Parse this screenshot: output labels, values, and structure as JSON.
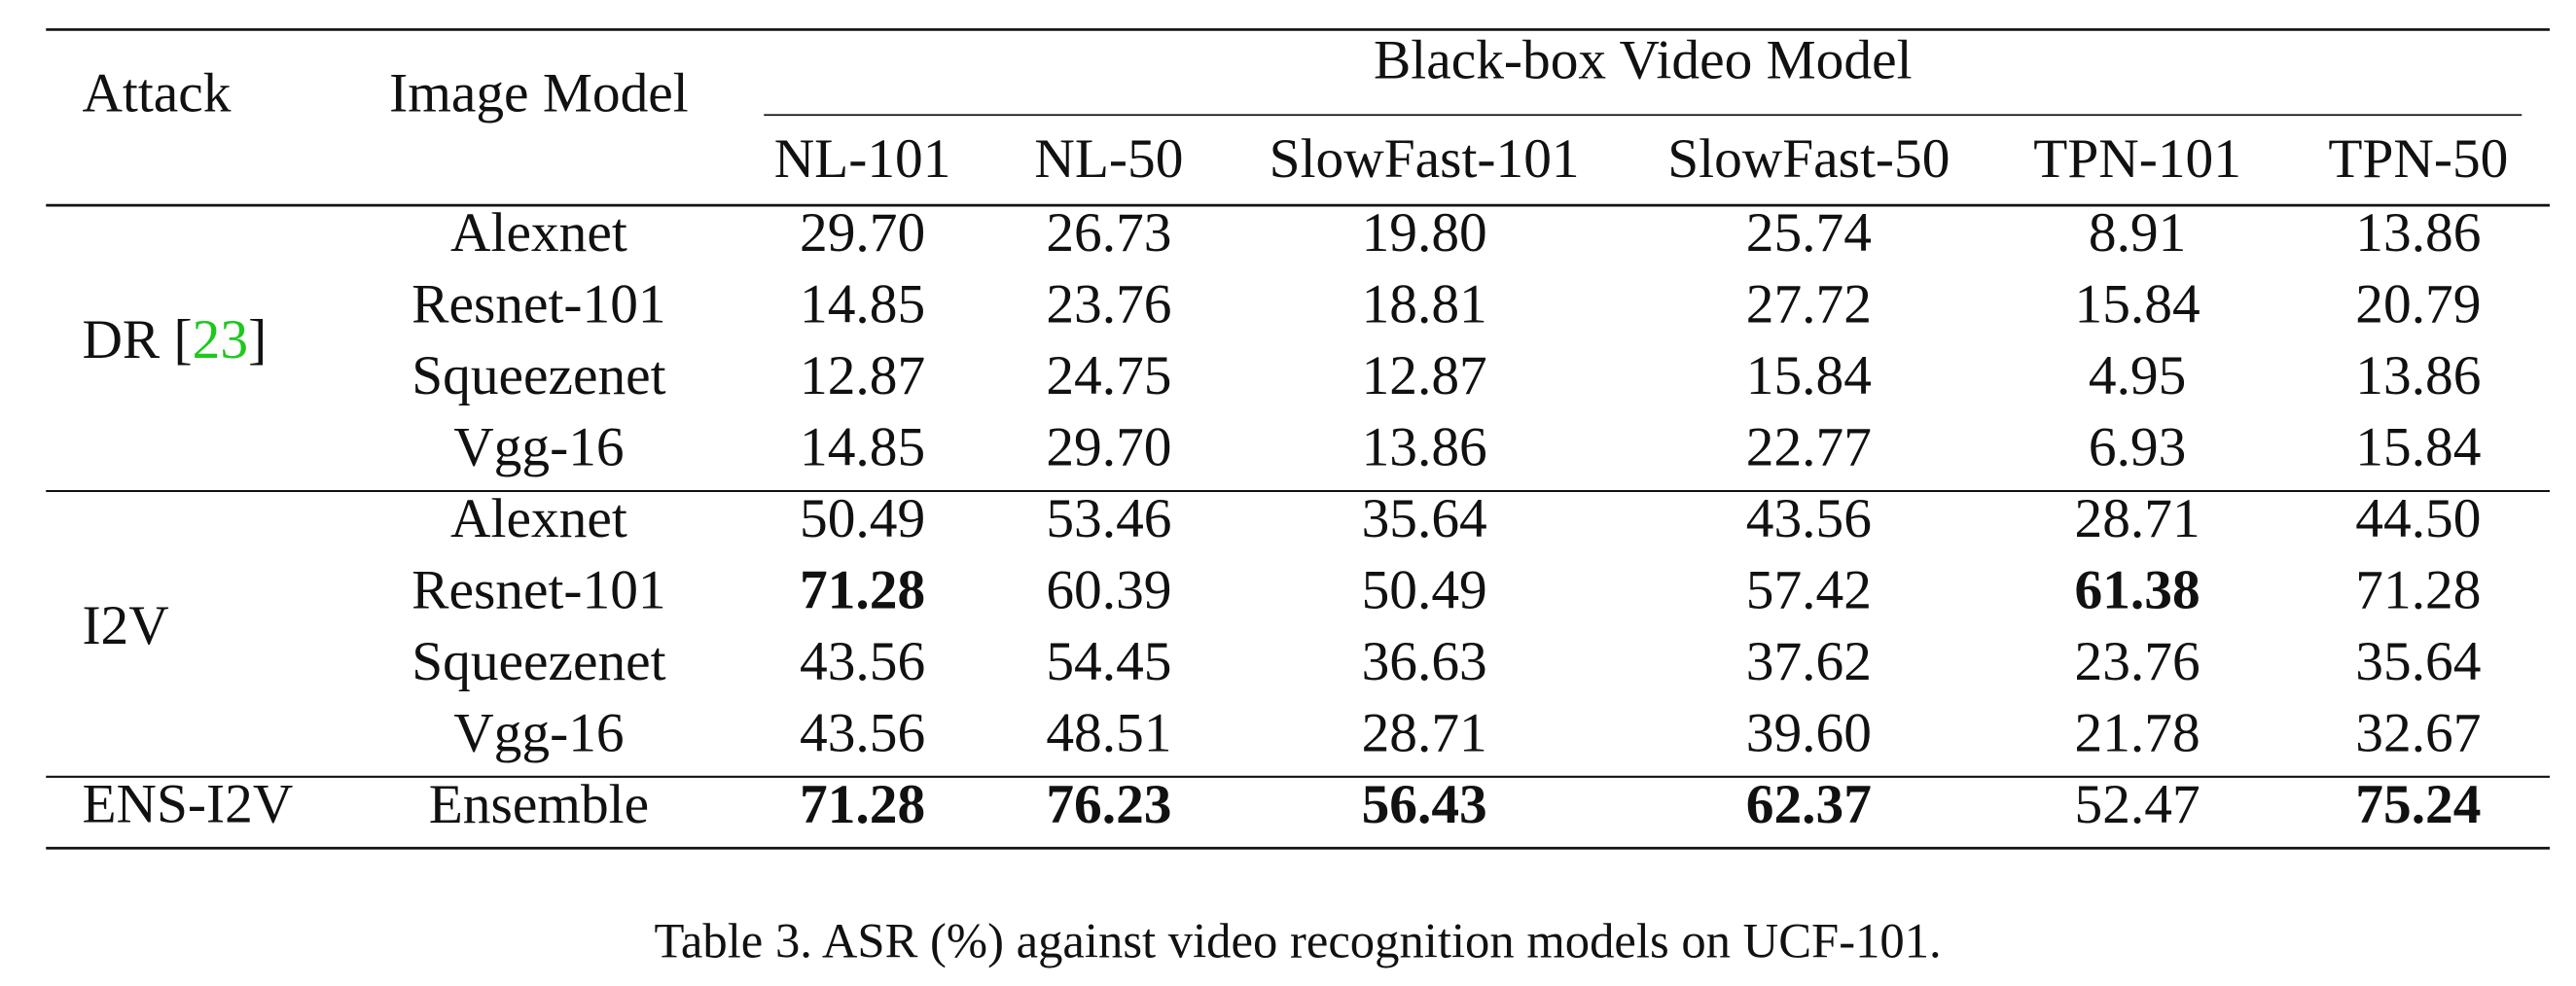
{
  "table": {
    "header": {
      "attack": "Attack",
      "image_model": "Image Model",
      "group": "Black-box Video Model",
      "columns": [
        "NL-101",
        "NL-50",
        "SlowFast-101",
        "SlowFast-50",
        "TPN-101",
        "TPN-50"
      ]
    },
    "groups": [
      {
        "attack": "DR",
        "citation": {
          "open": "[",
          "ref": "23",
          "close": "]",
          "color": "#1ec81e"
        },
        "rows": [
          {
            "model": "Alexnet",
            "values": [
              "29.70",
              "26.73",
              "19.80",
              "25.74",
              "8.91",
              "13.86"
            ]
          },
          {
            "model": "Resnet-101",
            "values": [
              "14.85",
              "23.76",
              "18.81",
              "27.72",
              "15.84",
              "20.79"
            ]
          },
          {
            "model": "Squeezenet",
            "values": [
              "12.87",
              "24.75",
              "12.87",
              "15.84",
              "4.95",
              "13.86"
            ]
          },
          {
            "model": "Vgg-16",
            "values": [
              "14.85",
              "29.70",
              "13.86",
              "22.77",
              "6.93",
              "15.84"
            ]
          }
        ]
      },
      {
        "attack": "I2V",
        "rows": [
          {
            "model": "Alexnet",
            "values": [
              "50.49",
              "53.46",
              "35.64",
              "43.56",
              "28.71",
              "44.50"
            ]
          },
          {
            "model": "Resnet-101",
            "values": [
              {
                "text": "71.28",
                "bold": true
              },
              "60.39",
              "50.49",
              "57.42",
              {
                "text": "61.38",
                "bold": true
              },
              "71.28"
            ]
          },
          {
            "model": "Squeezenet",
            "values": [
              "43.56",
              "54.45",
              "36.63",
              "37.62",
              "23.76",
              "35.64"
            ]
          },
          {
            "model": "Vgg-16",
            "values": [
              "43.56",
              "48.51",
              "28.71",
              "39.60",
              "21.78",
              "32.67"
            ]
          }
        ]
      },
      {
        "attack": "ENS-I2V",
        "rows": [
          {
            "model": "Ensemble",
            "values": [
              {
                "text": "71.28",
                "bold": true
              },
              {
                "text": "76.23",
                "bold": true
              },
              {
                "text": "56.43",
                "bold": true
              },
              {
                "text": "62.37",
                "bold": true
              },
              "52.47",
              {
                "text": "75.24",
                "bold": true
              }
            ]
          }
        ]
      }
    ]
  },
  "caption": "Table 3. ASR (%) against video recognition models on UCF-101."
}
